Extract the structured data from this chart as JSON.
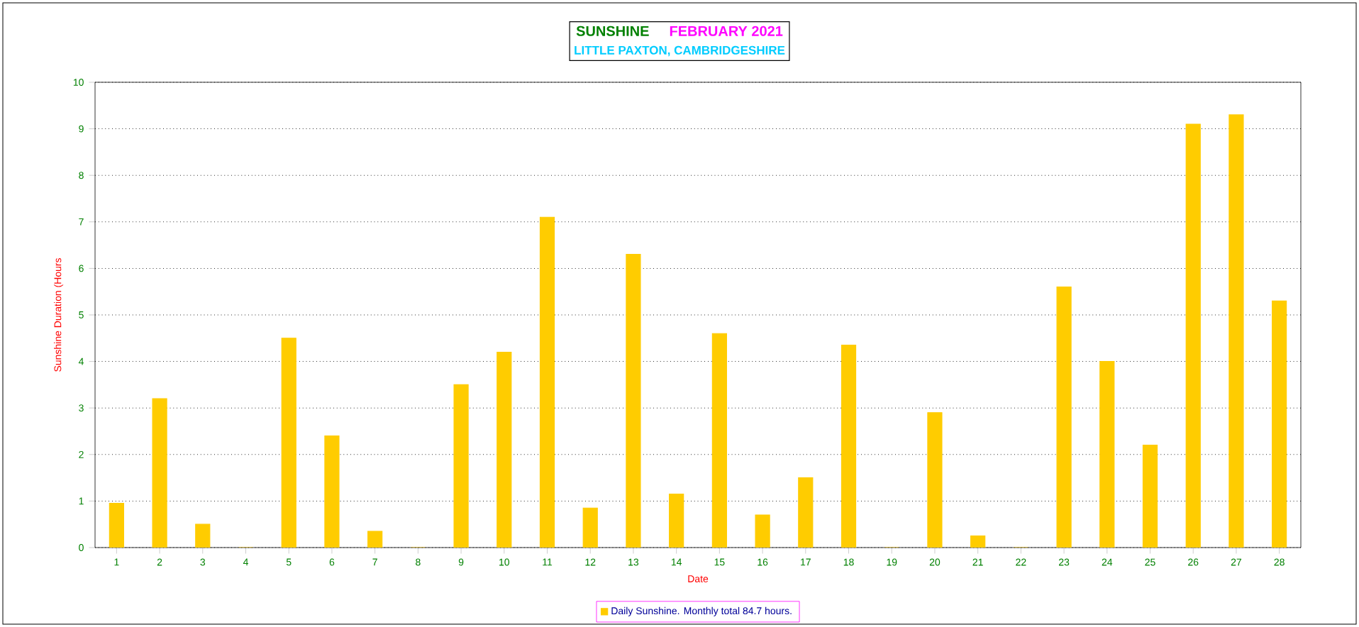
{
  "chart_data": {
    "type": "bar",
    "title": "SUNSHINE",
    "subtitle": "FEBRUARY 2021",
    "annotations": [
      "LITTLE PAXTON, CAMBRIDGESHIRE"
    ],
    "xlabel": "Date",
    "ylabel": "Sunshine Duration (Hours",
    "categories": [
      "1",
      "2",
      "3",
      "4",
      "5",
      "6",
      "7",
      "8",
      "9",
      "10",
      "11",
      "12",
      "13",
      "14",
      "15",
      "16",
      "17",
      "18",
      "19",
      "20",
      "21",
      "22",
      "23",
      "24",
      "25",
      "26",
      "27",
      "28"
    ],
    "series": [
      {
        "name": "Daily Sunshine. Monthly total 84.7 hours.",
        "color": "#ffcc00",
        "values": [
          0.95,
          3.2,
          0.5,
          0,
          4.5,
          2.4,
          0.35,
          0,
          3.5,
          4.2,
          7.1,
          0.85,
          6.3,
          1.15,
          4.6,
          0.7,
          1.5,
          4.35,
          0,
          2.9,
          0.25,
          0,
          5.6,
          4.0,
          2.2,
          9.1,
          9.3,
          5.3
        ]
      }
    ],
    "ylim": [
      0,
      10
    ],
    "yticks": [
      0,
      1,
      2,
      3,
      4,
      5,
      6,
      7,
      8,
      9,
      10
    ],
    "grid": "y",
    "legend": "bottom"
  }
}
